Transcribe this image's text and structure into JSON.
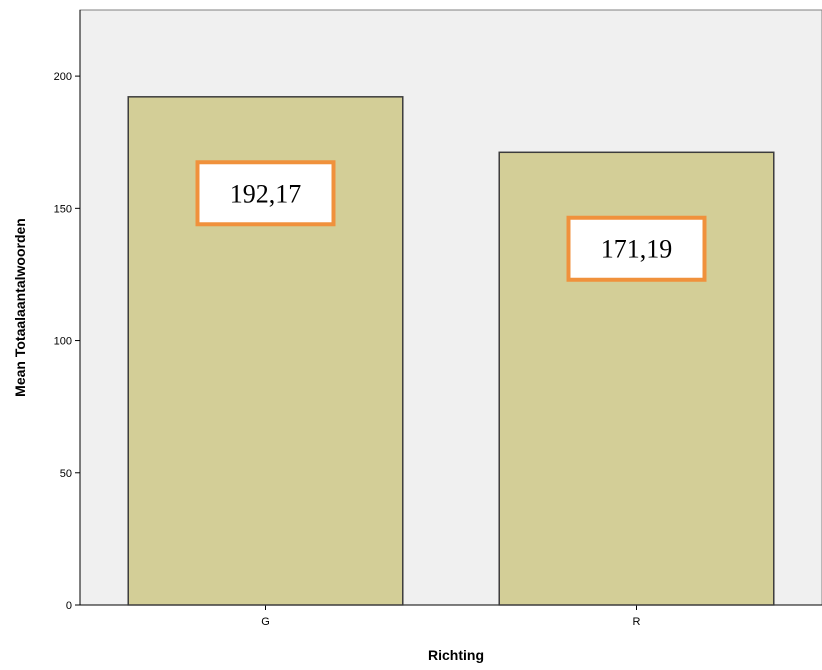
{
  "chart_data": {
    "type": "bar",
    "categories": [
      "G",
      "R"
    ],
    "values": [
      192.17,
      171.19
    ],
    "data_labels": [
      "192,17",
      "171,19"
    ],
    "title": "",
    "xlabel": "Richting",
    "ylabel": "Mean Totaalaantalwoorden",
    "ylim": [
      0,
      225
    ],
    "yticks": [
      0,
      50,
      100,
      150,
      200
    ],
    "grid": false,
    "legend": "none",
    "colors": {
      "plot_background": "#f0f0f0",
      "bar_fill": "#d3ce97",
      "bar_stroke": "#3c3c3c",
      "label_border": "#f0913c",
      "label_background": "#ffffff"
    }
  }
}
